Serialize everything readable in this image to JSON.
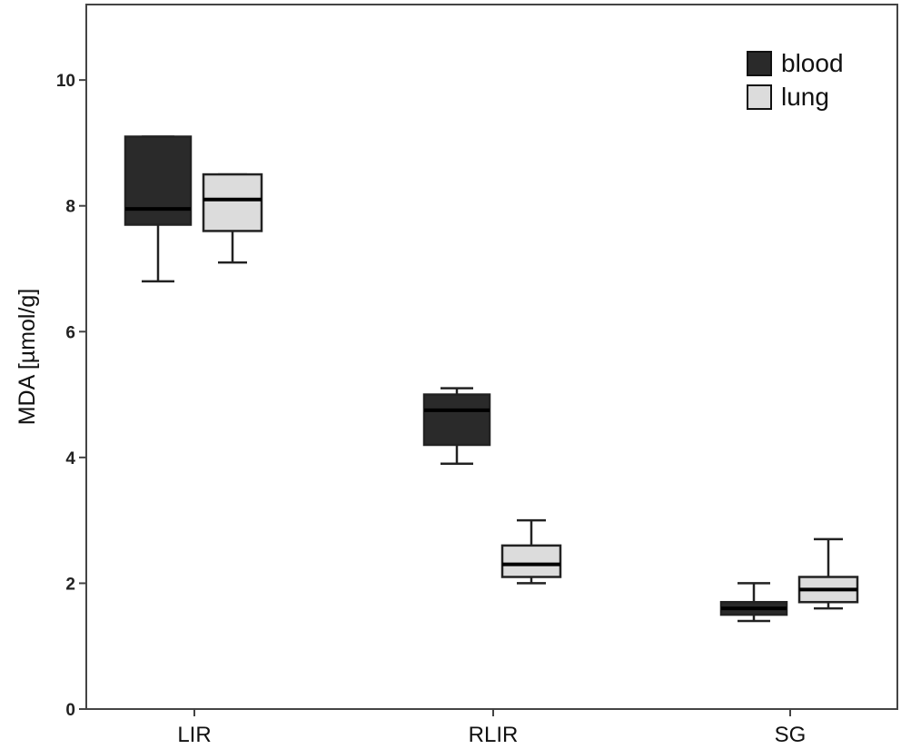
{
  "chart_data": {
    "type": "boxplot",
    "title": "",
    "xlabel": "",
    "ylabel": "MDA [µmol/g]",
    "ylim": [
      0,
      11.2
    ],
    "yticks": [
      "0",
      "2",
      "4",
      "6",
      "8",
      "10"
    ],
    "categories": [
      "LIR",
      "RLIR",
      "SG"
    ],
    "legend": {
      "position": "top-right",
      "entries": [
        "blood",
        "lung"
      ]
    },
    "series": [
      {
        "name": "blood",
        "color": "#2a2a2a",
        "boxes": [
          {
            "min": 6.8,
            "q1": 7.7,
            "median": 7.95,
            "q3": 9.1,
            "max": 9.1
          },
          {
            "min": 3.9,
            "q1": 4.2,
            "median": 4.75,
            "q3": 5.0,
            "max": 5.1
          },
          {
            "min": 1.4,
            "q1": 1.5,
            "median": 1.6,
            "q3": 1.7,
            "max": 2.0
          }
        ]
      },
      {
        "name": "lung",
        "color": "#dcdcdc",
        "boxes": [
          {
            "min": 7.1,
            "q1": 7.6,
            "median": 8.1,
            "q3": 8.5,
            "max": 8.5
          },
          {
            "min": 2.0,
            "q1": 2.1,
            "median": 2.3,
            "q3": 2.6,
            "max": 3.0
          },
          {
            "min": 1.6,
            "q1": 1.7,
            "median": 1.9,
            "q3": 2.1,
            "max": 2.7
          }
        ]
      }
    ]
  }
}
